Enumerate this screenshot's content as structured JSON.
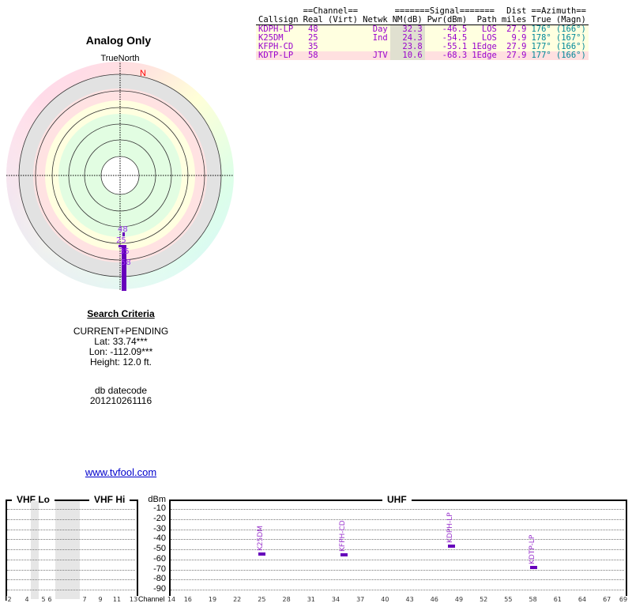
{
  "table": {
    "group_headers": {
      "channel": "==Channel==",
      "signal": "=======Signal=======",
      "dist": "Dist",
      "azimuth": "==Azimuth=="
    },
    "columns": [
      "Callsign",
      "Real",
      "(Virt)",
      "Netwk",
      "NM(dB)",
      "Pwr(dBm)",
      "Path",
      "miles",
      "True",
      "(Magn)"
    ],
    "rows": [
      {
        "callsign": "KDPH-LP",
        "real": "48",
        "virt": "",
        "netwk": "Day",
        "nm": "32.3",
        "pwr": "-46.5",
        "path": "LOS",
        "dist": "27.9",
        "true": "176°",
        "magn": "(166°)"
      },
      {
        "callsign": "K25DM",
        "real": "25",
        "virt": "",
        "netwk": "Ind",
        "nm": "24.3",
        "pwr": "-54.5",
        "path": "LOS",
        "dist": "9.9",
        "true": "178°",
        "magn": "(167°)"
      },
      {
        "callsign": "KFPH-CD",
        "real": "35",
        "virt": "",
        "netwk": "",
        "nm": "23.8",
        "pwr": "-55.1",
        "path": "1Edge",
        "dist": "27.9",
        "true": "177°",
        "magn": "(166°)"
      },
      {
        "callsign": "KDTP-LP",
        "real": "58",
        "virt": "",
        "netwk": "JTV",
        "nm": "10.6",
        "pwr": "-68.3",
        "path": "1Edge",
        "dist": "27.9",
        "true": "177°",
        "magn": "(166°)"
      }
    ]
  },
  "polar": {
    "title": "Analog Only",
    "north_label": "TrueNorth",
    "magnetic_n": "N",
    "markers": [
      "48",
      "25",
      "35",
      "58"
    ]
  },
  "criteria": {
    "heading": "Search Criteria",
    "mode": "CURRENT+PENDING",
    "lat": "Lat: 33.74***",
    "lon": "Lon: -112.09***",
    "height": "Height: 12.0 ft.",
    "db_label": "db datecode",
    "db_value": "201210261116"
  },
  "link": "www.tvfool.com",
  "spectrum": {
    "vhf_lo": "VHF Lo",
    "vhf_hi": "VHF Hi",
    "uhf": "UHF",
    "unit": "dBm",
    "channel_label": "Channel",
    "dbm_ticks": [
      "-10",
      "-20",
      "-30",
      "-40",
      "-50",
      "-60",
      "-70",
      "-80",
      "-90"
    ],
    "vhf_ticks": [
      "2",
      "4",
      "5",
      "6",
      "7",
      "9",
      "11",
      "13"
    ],
    "uhf_ticks": [
      "14",
      "16",
      "19",
      "22",
      "25",
      "28",
      "31",
      "34",
      "37",
      "40",
      "43",
      "46",
      "49",
      "52",
      "55",
      "58",
      "61",
      "64",
      "67",
      "69"
    ],
    "stations": [
      {
        "callsign": "K25DM",
        "channel": 25,
        "dbm": -54.5
      },
      {
        "callsign": "KFPH-CD",
        "channel": 35,
        "dbm": -55.1
      },
      {
        "callsign": "KDPH-LP",
        "channel": 48,
        "dbm": -46.5
      },
      {
        "callsign": "KDTP-LP",
        "channel": 58,
        "dbm": -68.3
      }
    ]
  }
}
